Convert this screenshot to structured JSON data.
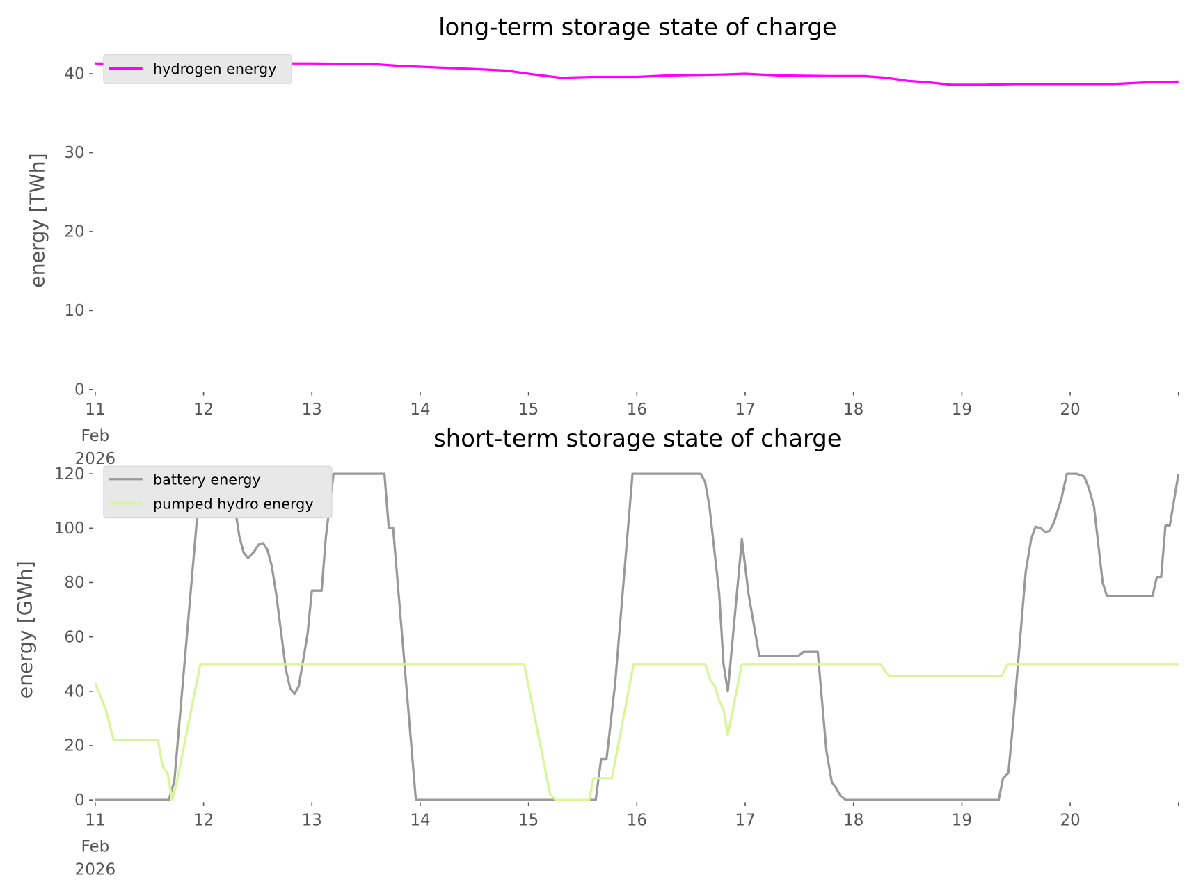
{
  "chart_data": [
    {
      "type": "line",
      "title": "long-term storage state of charge",
      "xlabel": "",
      "ylabel": "energy [TWh]",
      "xlim": [
        11,
        21
      ],
      "ylim": [
        0,
        42
      ],
      "yticks": [
        0,
        10,
        20,
        30,
        40
      ],
      "xticks": [
        11,
        12,
        13,
        14,
        15,
        16,
        17,
        18,
        19,
        20,
        21
      ],
      "xtick_labels": [
        "11",
        "12",
        "13",
        "14",
        "15",
        "16",
        "17",
        "18",
        "19",
        "20",
        ""
      ],
      "xtick_sub": [
        "Feb",
        "2026"
      ],
      "legend": "top-left",
      "grid": false,
      "series": [
        {
          "name": "hydrogen energy",
          "color": "#ff00ff",
          "x": [
            11.0,
            11.5,
            12.0,
            13.0,
            13.6,
            13.8,
            14.5,
            14.8,
            15.0,
            15.3,
            15.6,
            16.0,
            16.3,
            16.8,
            17.0,
            17.3,
            17.8,
            18.1,
            18.3,
            18.5,
            18.7,
            18.9,
            19.2,
            19.5,
            20.4,
            20.7,
            21.0
          ],
          "y": [
            41.3,
            41.2,
            41.3,
            41.3,
            41.2,
            41.0,
            40.6,
            40.4,
            40.0,
            39.5,
            39.6,
            39.6,
            39.8,
            39.9,
            40.0,
            39.8,
            39.7,
            39.7,
            39.5,
            39.1,
            38.9,
            38.6,
            38.6,
            38.7,
            38.7,
            38.9,
            39.0
          ]
        }
      ]
    },
    {
      "type": "line",
      "title": "short-term storage state of charge",
      "xlabel": "",
      "ylabel": "energy [GWh]",
      "xlim": [
        11,
        21
      ],
      "ylim": [
        0,
        120
      ],
      "yticks": [
        0,
        20,
        40,
        60,
        80,
        100,
        120
      ],
      "xticks": [
        11,
        12,
        13,
        14,
        15,
        16,
        17,
        18,
        19,
        20,
        21
      ],
      "xtick_labels": [
        "11",
        "12",
        "13",
        "14",
        "15",
        "16",
        "17",
        "18",
        "19",
        "20",
        ""
      ],
      "xtick_sub": [
        "Feb",
        "2026"
      ],
      "legend": "top-left",
      "grid": false,
      "series": [
        {
          "name": "battery energy",
          "color": "#999999",
          "x": [
            11.0,
            11.68,
            11.73,
            11.96,
            12.12,
            12.19,
            12.22,
            12.25,
            12.33,
            12.37,
            12.41,
            12.46,
            12.51,
            12.55,
            12.59,
            12.63,
            12.67,
            12.76,
            12.8,
            12.84,
            12.88,
            12.96,
            13.0,
            13.09,
            13.13,
            13.2,
            13.67,
            13.71,
            13.75,
            13.96,
            15.62,
            15.67,
            15.72,
            15.8,
            15.96,
            16.59,
            16.63,
            16.67,
            16.76,
            16.8,
            16.84,
            16.97,
            17.03,
            17.13,
            17.49,
            17.54,
            17.67,
            17.75,
            17.8,
            17.83,
            17.88,
            17.93,
            19.34,
            19.38,
            19.43,
            19.47,
            19.59,
            19.64,
            19.68,
            19.73,
            19.77,
            19.81,
            19.85,
            19.92,
            19.97,
            20.06,
            20.13,
            20.17,
            20.22,
            20.3,
            20.34,
            20.76,
            20.8,
            20.84,
            20.88,
            20.92,
            21.0
          ],
          "y": [
            0,
            0,
            7,
            113,
            113,
            116,
            120,
            118,
            97,
            91,
            89,
            91,
            94,
            94.5,
            92,
            86,
            76,
            48,
            41,
            39,
            42,
            61,
            77,
            77,
            97,
            120,
            120,
            100,
            100,
            0,
            0,
            15,
            15,
            43,
            120,
            120,
            117,
            108,
            76,
            50,
            40,
            96,
            76,
            53,
            53,
            54.5,
            54.5,
            18,
            6.5,
            5,
            1.5,
            0,
            0,
            8,
            10,
            27,
            84,
            96,
            100.5,
            100,
            98.5,
            99,
            102,
            111,
            120,
            120,
            119,
            115,
            108,
            80,
            75,
            75,
            82,
            82,
            101,
            101,
            120
          ]
        },
        {
          "name": "pumped hydro energy",
          "color": "#d9f59a",
          "x": [
            11.0,
            11.1,
            11.17,
            11.58,
            11.62,
            11.67,
            11.71,
            11.75,
            11.97,
            14.96,
            15.2,
            15.25,
            15.56,
            15.6,
            15.77,
            15.97,
            16.63,
            16.68,
            16.72,
            16.76,
            16.8,
            16.84,
            16.97,
            18.25,
            18.3,
            18.33,
            19.37,
            19.42,
            21.0
          ],
          "y": [
            43,
            33,
            22,
            22,
            12.5,
            9.5,
            0,
            6,
            50,
            50,
            2,
            0,
            0,
            8,
            8,
            50,
            50,
            44,
            42,
            36.5,
            33.5,
            24,
            50,
            50,
            47,
            45.5,
            45.5,
            50,
            50
          ]
        }
      ]
    }
  ]
}
